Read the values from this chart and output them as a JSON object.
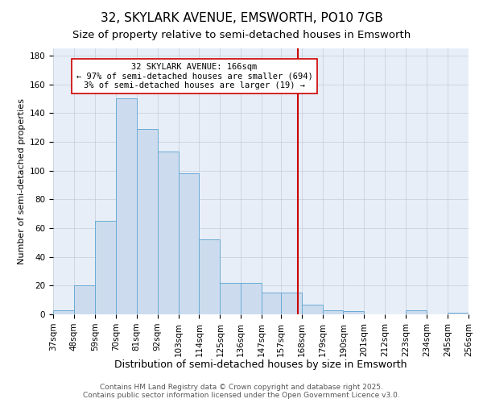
{
  "title": "32, SKYLARK AVENUE, EMSWORTH, PO10 7GB",
  "subtitle": "Size of property relative to semi-detached houses in Emsworth",
  "xlabel": "Distribution of semi-detached houses by size in Emsworth",
  "ylabel": "Number of semi-detached properties",
  "bin_labels": [
    "37sqm",
    "48sqm",
    "59sqm",
    "70sqm",
    "81sqm",
    "92sqm",
    "103sqm",
    "114sqm",
    "125sqm",
    "136sqm",
    "147sqm",
    "157sqm",
    "168sqm",
    "179sqm",
    "190sqm",
    "201sqm",
    "212sqm",
    "223sqm",
    "234sqm",
    "245sqm",
    "256sqm"
  ],
  "bin_edges": [
    37,
    48,
    59,
    70,
    81,
    92,
    103,
    114,
    125,
    136,
    147,
    157,
    168,
    179,
    190,
    201,
    212,
    223,
    234,
    245,
    256
  ],
  "counts": [
    3,
    20,
    65,
    150,
    129,
    113,
    98,
    52,
    22,
    22,
    15,
    15,
    7,
    3,
    2,
    0,
    0,
    3,
    0,
    1
  ],
  "bar_facecolor": "#ccdcee",
  "bar_edgecolor": "#6aaad4",
  "vline_x": 166,
  "vline_color": "#cc0000",
  "annotation_title": "32 SKYLARK AVENUE: 166sqm",
  "annotation_line1": "← 97% of semi-detached houses are smaller (694)",
  "annotation_line2": "3% of semi-detached houses are larger (19) →",
  "annotation_box_edgecolor": "#cc0000",
  "annotation_box_facecolor": "#ffffff",
  "ylim": [
    0,
    185
  ],
  "yticks": [
    0,
    20,
    40,
    60,
    80,
    100,
    120,
    140,
    160,
    180
  ],
  "background_color": "#e8eef8",
  "footer_line1": "Contains HM Land Registry data © Crown copyright and database right 2025.",
  "footer_line2": "Contains public sector information licensed under the Open Government Licence v3.0.",
  "title_fontsize": 11,
  "subtitle_fontsize": 9.5,
  "xlabel_fontsize": 9,
  "ylabel_fontsize": 8,
  "tick_fontsize": 7.5,
  "footer_fontsize": 6.5
}
